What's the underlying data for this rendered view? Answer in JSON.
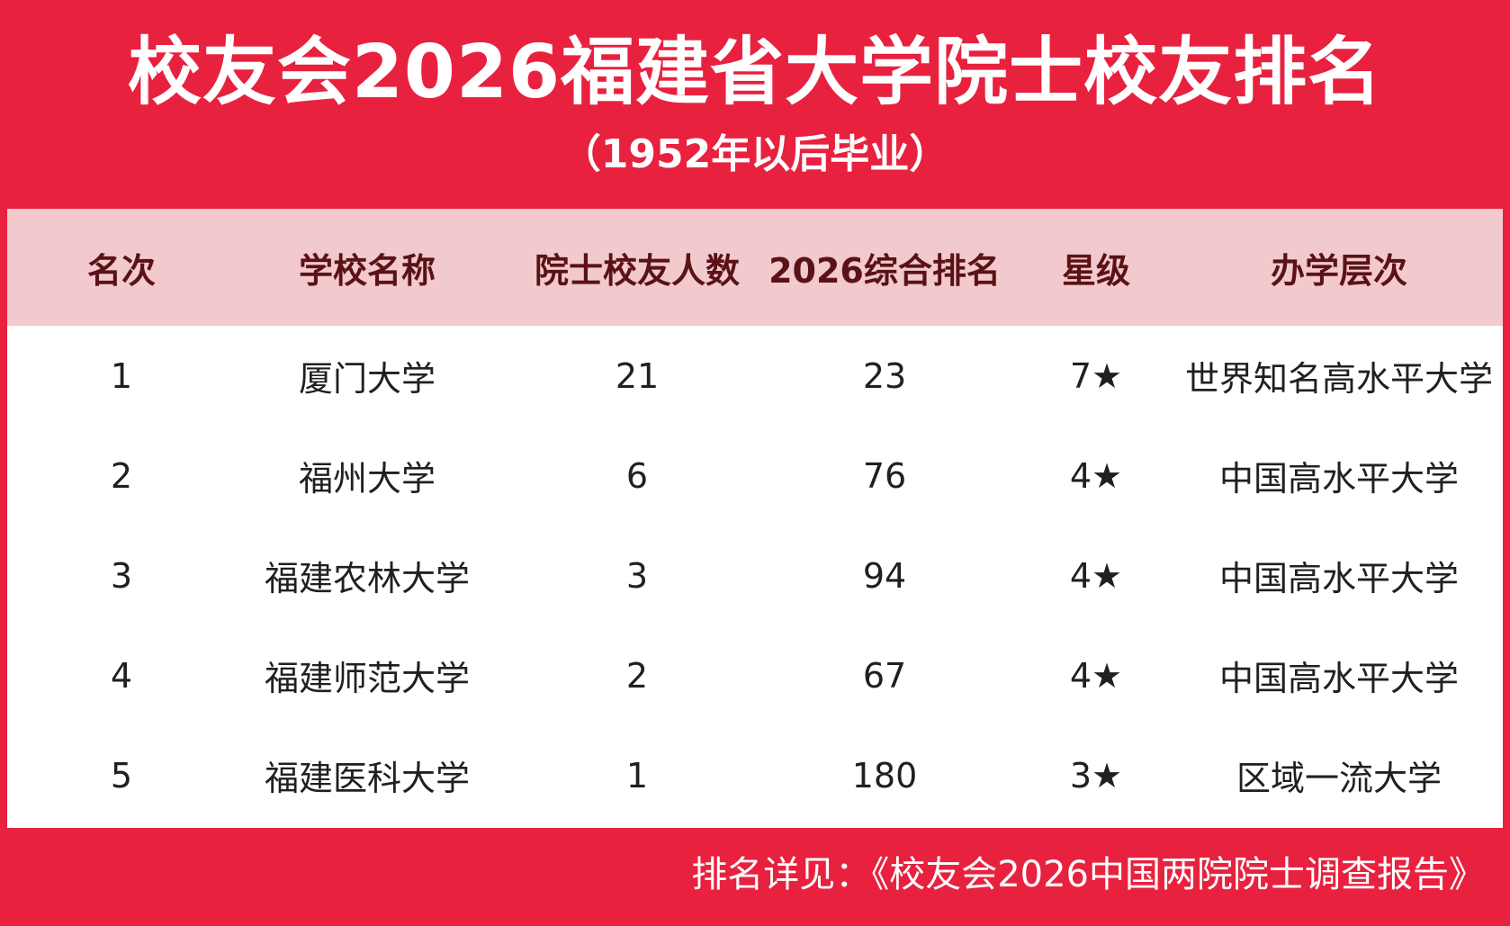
{
  "header": {
    "title": "校友会2026福建省大学院士校友排名",
    "subtitle": "（1952年以后毕业）"
  },
  "table": {
    "columns": [
      "名次",
      "学校名称",
      "院士校友人数",
      "2026综合排名",
      "星级",
      "办学层次"
    ],
    "rows": [
      {
        "rank": "1",
        "name": "厦门大学",
        "count": "21",
        "overall": "23",
        "stars": "7★",
        "level": "世界知名高水平大学"
      },
      {
        "rank": "2",
        "name": "福州大学",
        "count": "6",
        "overall": "76",
        "stars": "4★",
        "level": "中国高水平大学"
      },
      {
        "rank": "3",
        "name": "福建农林大学",
        "count": "3",
        "overall": "94",
        "stars": "4★",
        "level": "中国高水平大学"
      },
      {
        "rank": "4",
        "name": "福建师范大学",
        "count": "2",
        "overall": "67",
        "stars": "4★",
        "level": "中国高水平大学"
      },
      {
        "rank": "5",
        "name": "福建医科大学",
        "count": "1",
        "overall": "180",
        "stars": "3★",
        "level": "区域一流大学"
      }
    ]
  },
  "footer": {
    "note": "排名详见：《校友会2026中国两院院士调查报告》"
  }
}
